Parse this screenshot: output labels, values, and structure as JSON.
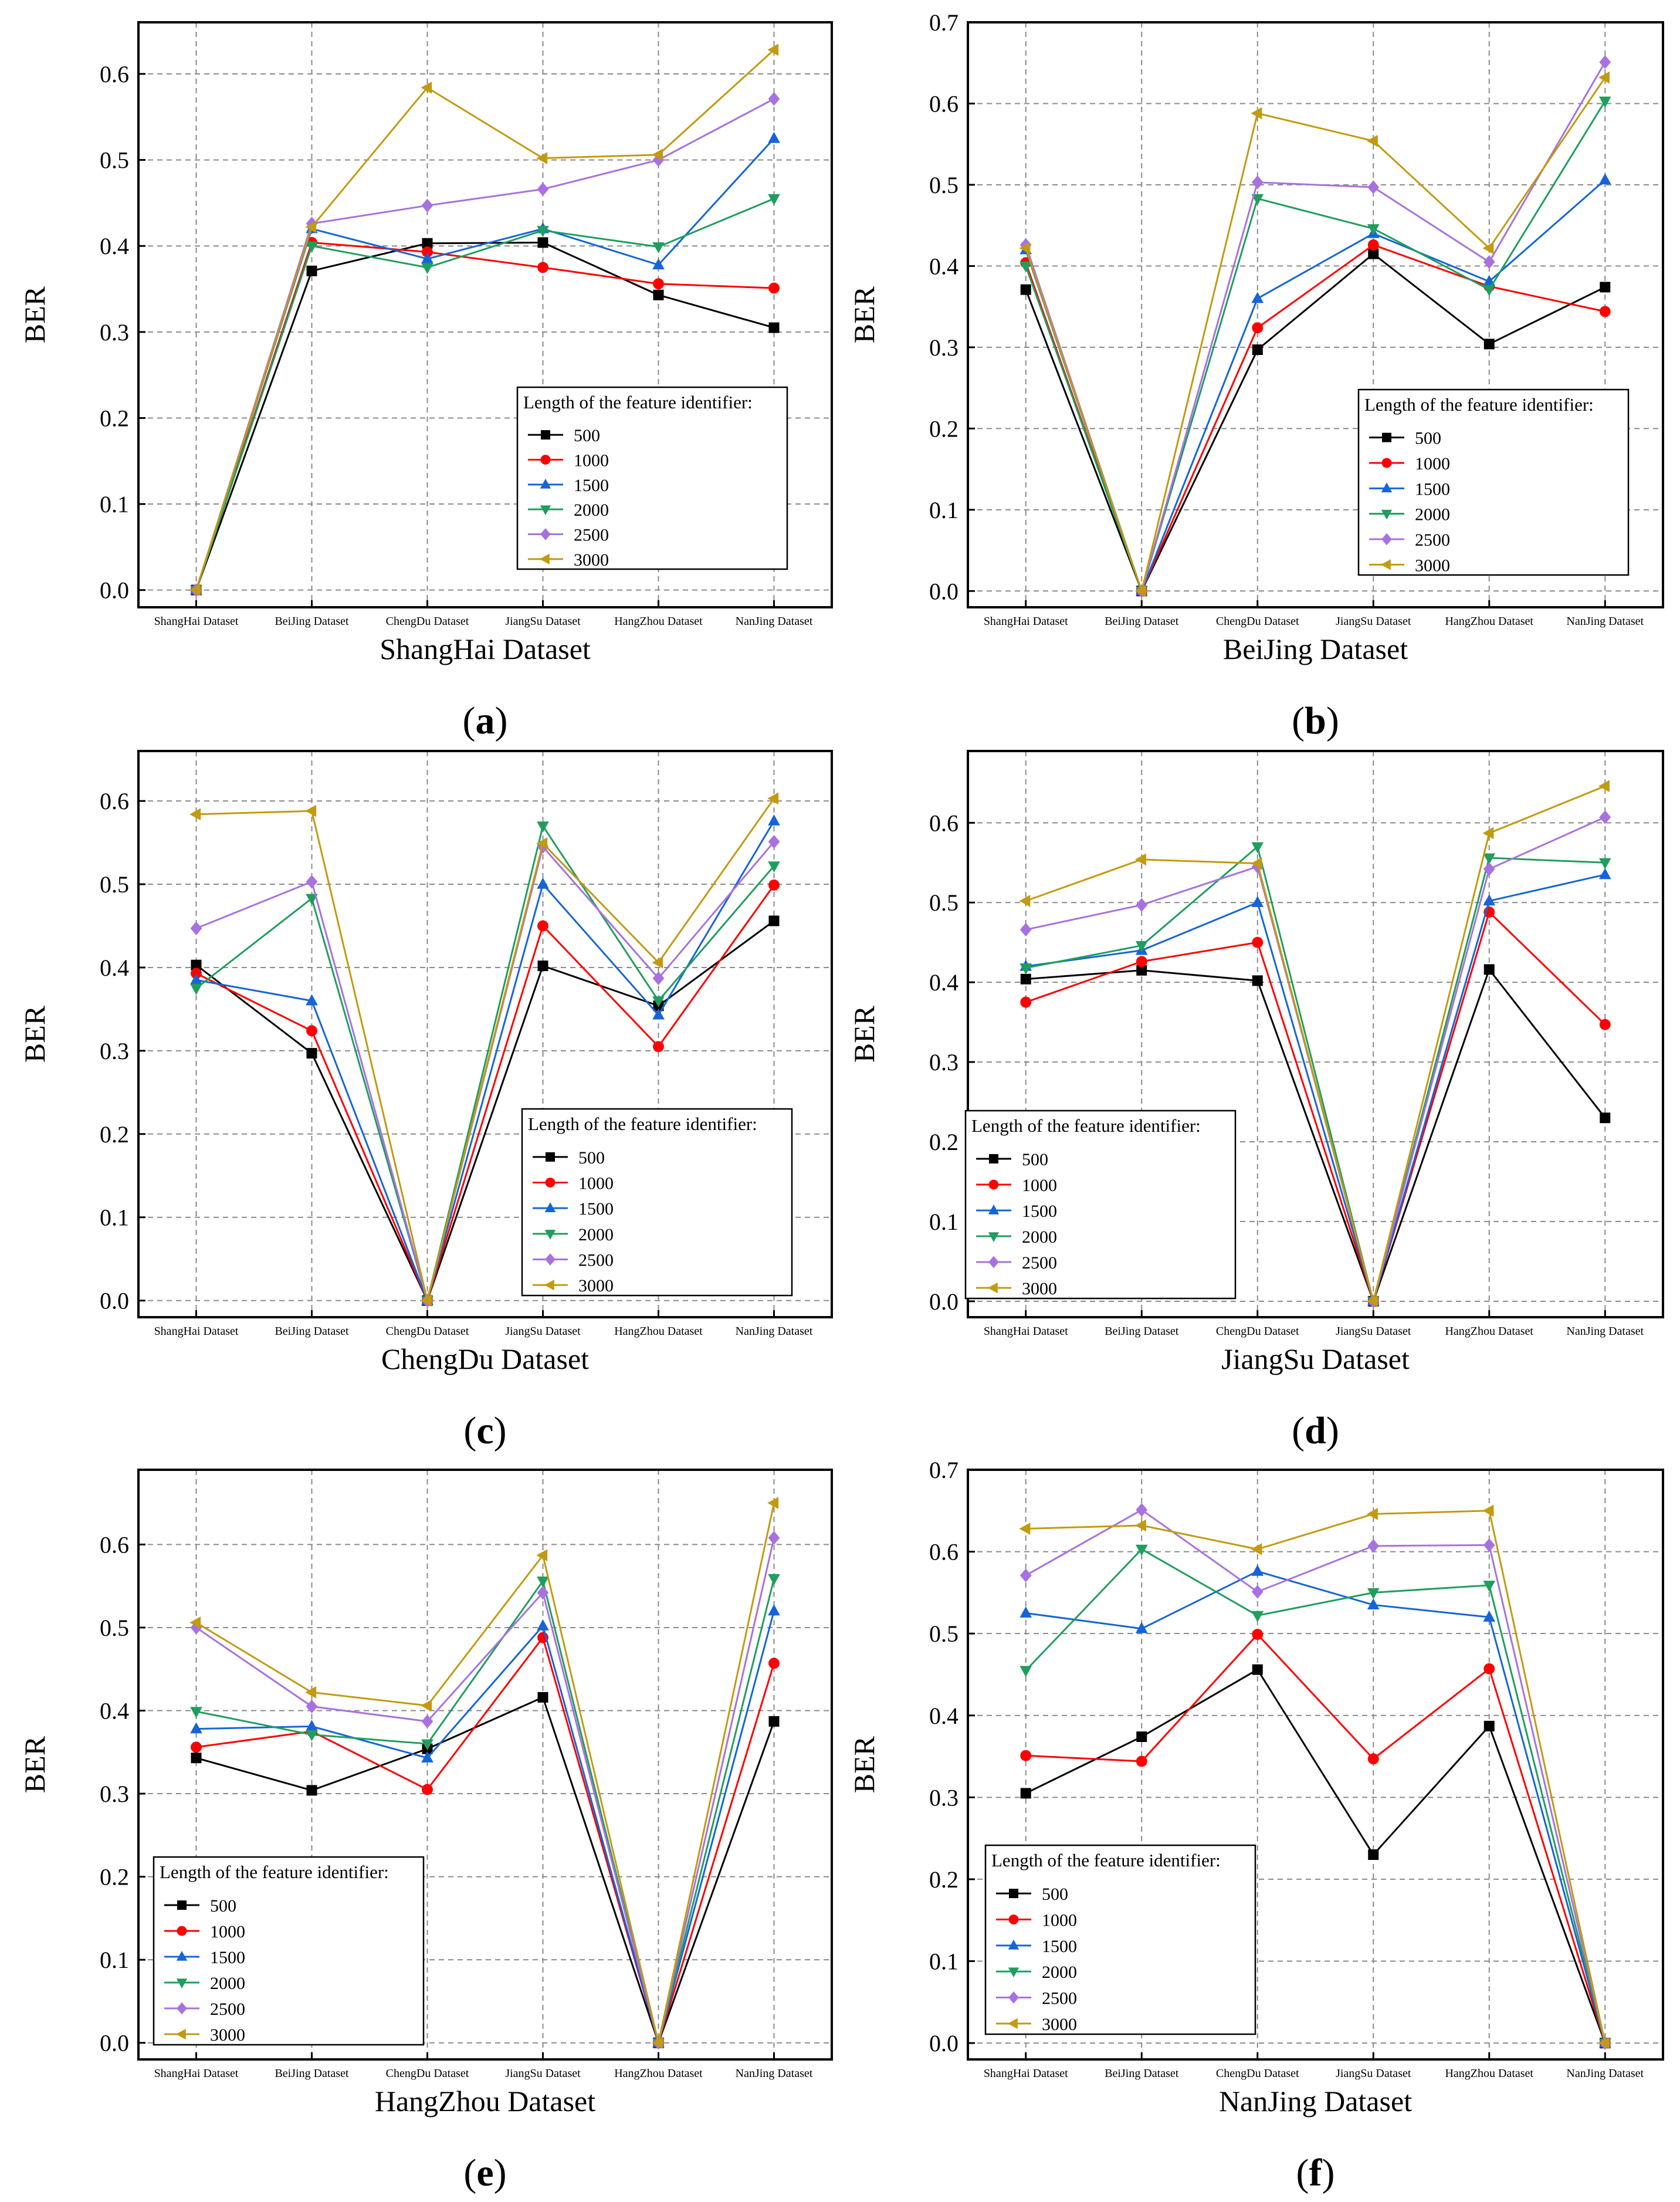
{
  "figure": {
    "legend_title": "Length of the feature identifier:",
    "series_colors": {
      "500": "#000000",
      "1000": "#ff0000",
      "1500": "#1565d8",
      "2000": "#1f9e5e",
      "2500": "#a772e0",
      "3000": "#c39a10"
    }
  },
  "chart_data": [
    {
      "type": "line",
      "panel": "(a)",
      "panel_letter": "a",
      "xlabel": "ShangHai Dataset",
      "ylabel": "BER",
      "categories": [
        "ShangHai Dataset",
        "BeiJing Dataset",
        "ChengDu Dataset",
        "JiangSu Dataset",
        "HangZhou Dataset",
        "NanJing Dataset"
      ],
      "ylim": [
        -0.02,
        0.66
      ],
      "yticks": [
        "0.0",
        "0.1",
        "0.2",
        "0.3",
        "0.4",
        "0.5",
        "0.6"
      ],
      "grid": true,
      "legend_position": "lower-right",
      "series": [
        {
          "name": "500",
          "marker": "square",
          "values": [
            0,
            0.371,
            0.403,
            0.404,
            0.343,
            0.305
          ]
        },
        {
          "name": "1000",
          "marker": "circle",
          "values": [
            0,
            0.404,
            0.393,
            0.375,
            0.356,
            0.351
          ]
        },
        {
          "name": "1500",
          "marker": "triangle-up",
          "values": [
            0,
            0.42,
            0.385,
            0.42,
            0.378,
            0.525
          ]
        },
        {
          "name": "2000",
          "marker": "triangle-down",
          "values": [
            0,
            0.4,
            0.375,
            0.418,
            0.399,
            0.455
          ]
        },
        {
          "name": "2500",
          "marker": "diamond",
          "values": [
            0,
            0.426,
            0.447,
            0.466,
            0.5,
            0.571
          ]
        },
        {
          "name": "3000",
          "marker": "triangle-left",
          "values": [
            0,
            0.422,
            0.584,
            0.502,
            0.506,
            0.628
          ]
        }
      ]
    },
    {
      "type": "line",
      "panel": "(b)",
      "panel_letter": "b",
      "xlabel": "BeiJing Dataset",
      "ylabel": "BER",
      "categories": [
        "ShangHai Dataset",
        "BeiJing Dataset",
        "ChengDu Dataset",
        "JiangSu Dataset",
        "HangZhou Dataset",
        "NanJing Dataset"
      ],
      "ylim": [
        -0.02,
        0.7
      ],
      "yticks": [
        "0.0",
        "0.1",
        "0.2",
        "0.3",
        "0.4",
        "0.5",
        "0.6",
        "0.7"
      ],
      "grid": true,
      "legend_position": "lower-right",
      "series": [
        {
          "name": "500",
          "marker": "square",
          "values": [
            0.371,
            0,
            0.297,
            0.415,
            0.304,
            0.374
          ]
        },
        {
          "name": "1000",
          "marker": "circle",
          "values": [
            0.404,
            0,
            0.324,
            0.426,
            0.375,
            0.344
          ]
        },
        {
          "name": "1500",
          "marker": "triangle-up",
          "values": [
            0.42,
            0,
            0.36,
            0.44,
            0.381,
            0.506
          ]
        },
        {
          "name": "2000",
          "marker": "triangle-down",
          "values": [
            0.4,
            0,
            0.483,
            0.446,
            0.371,
            0.603
          ]
        },
        {
          "name": "2500",
          "marker": "diamond",
          "values": [
            0.426,
            0,
            0.503,
            0.497,
            0.405,
            0.651
          ]
        },
        {
          "name": "3000",
          "marker": "triangle-left",
          "values": [
            0.422,
            0,
            0.588,
            0.554,
            0.422,
            0.632
          ]
        }
      ]
    },
    {
      "type": "line",
      "panel": "(c)",
      "panel_letter": "c",
      "xlabel": "ChengDu Dataset",
      "ylabel": "BER",
      "categories": [
        "ShangHai Dataset",
        "BeiJing Dataset",
        "ChengDu Dataset",
        "JiangSu Dataset",
        "HangZhou Dataset",
        "NanJing Dataset"
      ],
      "ylim": [
        -0.02,
        0.66
      ],
      "yticks": [
        "0.0",
        "0.1",
        "0.2",
        "0.3",
        "0.4",
        "0.5",
        "0.6"
      ],
      "grid": true,
      "legend_position": "lower-right",
      "series": [
        {
          "name": "500",
          "marker": "square",
          "values": [
            0.403,
            0.297,
            0,
            0.402,
            0.354,
            0.456
          ]
        },
        {
          "name": "1000",
          "marker": "circle",
          "values": [
            0.393,
            0.324,
            0,
            0.45,
            0.305,
            0.499
          ]
        },
        {
          "name": "1500",
          "marker": "triangle-up",
          "values": [
            0.385,
            0.36,
            0,
            0.5,
            0.343,
            0.576
          ]
        },
        {
          "name": "2000",
          "marker": "triangle-down",
          "values": [
            0.375,
            0.483,
            0,
            0.57,
            0.36,
            0.522
          ]
        },
        {
          "name": "2500",
          "marker": "diamond",
          "values": [
            0.447,
            0.503,
            0,
            0.545,
            0.387,
            0.551
          ]
        },
        {
          "name": "3000",
          "marker": "triangle-left",
          "values": [
            0.584,
            0.588,
            0,
            0.549,
            0.406,
            0.603
          ]
        }
      ]
    },
    {
      "type": "line",
      "panel": "(d)",
      "panel_letter": "d",
      "xlabel": "JiangSu Dataset",
      "ylabel": "BER",
      "categories": [
        "ShangHai Dataset",
        "BeiJing Dataset",
        "ChengDu Dataset",
        "JiangSu Dataset",
        "HangZhou Dataset",
        "NanJing Dataset"
      ],
      "ylim": [
        -0.02,
        0.69
      ],
      "yticks": [
        "0.0",
        "0.1",
        "0.2",
        "0.3",
        "0.4",
        "0.5",
        "0.6"
      ],
      "grid": true,
      "legend_position": "lower-left",
      "series": [
        {
          "name": "500",
          "marker": "square",
          "values": [
            0.404,
            0.415,
            0.402,
            0,
            0.416,
            0.23
          ]
        },
        {
          "name": "1000",
          "marker": "circle",
          "values": [
            0.375,
            0.426,
            0.45,
            0,
            0.488,
            0.347
          ]
        },
        {
          "name": "1500",
          "marker": "triangle-up",
          "values": [
            0.42,
            0.44,
            0.5,
            0,
            0.502,
            0.535
          ]
        },
        {
          "name": "2000",
          "marker": "triangle-down",
          "values": [
            0.418,
            0.446,
            0.57,
            0,
            0.556,
            0.55
          ]
        },
        {
          "name": "2500",
          "marker": "diamond",
          "values": [
            0.466,
            0.497,
            0.545,
            0,
            0.542,
            0.607
          ]
        },
        {
          "name": "3000",
          "marker": "triangle-left",
          "values": [
            0.502,
            0.554,
            0.549,
            0,
            0.587,
            0.646
          ]
        }
      ]
    },
    {
      "type": "line",
      "panel": "(e)",
      "panel_letter": "e",
      "xlabel": "HangZhou Dataset",
      "ylabel": "BER",
      "categories": [
        "ShangHai Dataset",
        "BeiJing Dataset",
        "ChengDu Dataset",
        "JiangSu Dataset",
        "HangZhou Dataset",
        "NanJing Dataset"
      ],
      "ylim": [
        -0.02,
        0.69
      ],
      "yticks": [
        "0.0",
        "0.1",
        "0.2",
        "0.3",
        "0.4",
        "0.5",
        "0.6"
      ],
      "grid": true,
      "legend_position": "lower-left",
      "series": [
        {
          "name": "500",
          "marker": "square",
          "values": [
            0.343,
            0.304,
            0.354,
            0.416,
            0,
            0.387
          ]
        },
        {
          "name": "1000",
          "marker": "circle",
          "values": [
            0.356,
            0.375,
            0.305,
            0.488,
            0,
            0.457
          ]
        },
        {
          "name": "1500",
          "marker": "triangle-up",
          "values": [
            0.378,
            0.381,
            0.343,
            0.502,
            0,
            0.52
          ]
        },
        {
          "name": "2000",
          "marker": "triangle-down",
          "values": [
            0.399,
            0.371,
            0.36,
            0.556,
            0,
            0.559
          ]
        },
        {
          "name": "2500",
          "marker": "diamond",
          "values": [
            0.5,
            0.405,
            0.387,
            0.542,
            0,
            0.608
          ]
        },
        {
          "name": "3000",
          "marker": "triangle-left",
          "values": [
            0.506,
            0.422,
            0.406,
            0.587,
            0,
            0.65
          ]
        }
      ]
    },
    {
      "type": "line",
      "panel": "(f)",
      "panel_letter": "f",
      "xlabel": "NanJing Dataset",
      "ylabel": "BER",
      "categories": [
        "ShangHai Dataset",
        "BeiJing Dataset",
        "ChengDu Dataset",
        "JiangSu Dataset",
        "HangZhou Dataset",
        "NanJing Dataset"
      ],
      "ylim": [
        -0.02,
        0.7
      ],
      "yticks": [
        "0.0",
        "0.1",
        "0.2",
        "0.3",
        "0.4",
        "0.5",
        "0.6",
        "0.7"
      ],
      "grid": true,
      "legend_position": "lower-left",
      "series": [
        {
          "name": "500",
          "marker": "square",
          "values": [
            0.305,
            0.374,
            0.456,
            0.23,
            0.387,
            0
          ]
        },
        {
          "name": "1000",
          "marker": "circle",
          "values": [
            0.351,
            0.344,
            0.499,
            0.347,
            0.457,
            0
          ]
        },
        {
          "name": "1500",
          "marker": "triangle-up",
          "values": [
            0.525,
            0.506,
            0.576,
            0.535,
            0.52,
            0
          ]
        },
        {
          "name": "2000",
          "marker": "triangle-down",
          "values": [
            0.455,
            0.603,
            0.522,
            0.55,
            0.559,
            0
          ]
        },
        {
          "name": "2500",
          "marker": "diamond",
          "values": [
            0.571,
            0.651,
            0.551,
            0.607,
            0.608,
            0
          ]
        },
        {
          "name": "3000",
          "marker": "triangle-left",
          "values": [
            0.628,
            0.632,
            0.603,
            0.646,
            0.65,
            0
          ]
        }
      ]
    }
  ]
}
